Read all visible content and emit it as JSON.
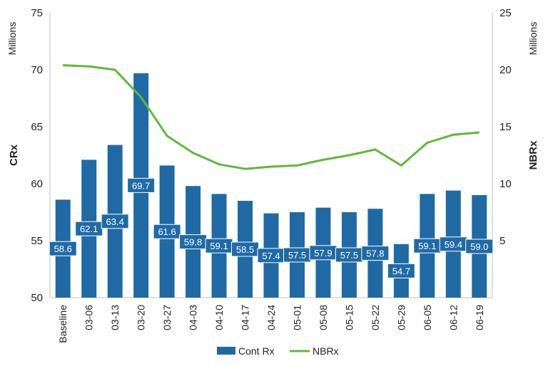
{
  "chart_data": {
    "type": "bar",
    "categories": [
      "Baseline",
      "03-06",
      "03-13",
      "03-20",
      "03-27",
      "04-03",
      "04-10",
      "04-17",
      "04-24",
      "05-01",
      "05-08",
      "05-15",
      "05-22",
      "05-29",
      "06-05",
      "06-12",
      "06-19"
    ],
    "series": [
      {
        "name": "Cont Rx",
        "type": "bar",
        "axis": "left",
        "color": "#1f6aa5",
        "values": [
          58.6,
          62.1,
          63.4,
          69.7,
          61.6,
          59.8,
          59.1,
          58.5,
          57.4,
          57.5,
          57.9,
          57.5,
          57.8,
          54.7,
          59.1,
          59.4,
          59.0
        ],
        "labels": [
          "58.6",
          "62.1",
          "63.4",
          "69.7",
          "61.6",
          "59.8",
          "59.1",
          "58.5",
          "57.4",
          "57.5",
          "57.9",
          "57.5",
          "57.8",
          "54.7",
          "59.1",
          "59.4",
          "59.0"
        ]
      },
      {
        "name": "NBRx",
        "type": "line",
        "axis": "right",
        "color": "#5fb83a",
        "values": [
          20.4,
          20.3,
          20.0,
          17.6,
          14.2,
          12.7,
          11.7,
          11.3,
          11.5,
          11.6,
          12.1,
          12.5,
          13.0,
          11.6,
          13.6,
          14.3,
          14.5
        ]
      }
    ],
    "y_left": {
      "label": "CRx",
      "unit": "Millions",
      "min": 50,
      "max": 75,
      "ticks": [
        "50",
        "55",
        "60",
        "65",
        "70",
        "75"
      ]
    },
    "y_right": {
      "label": "NBRx",
      "unit": "Millions",
      "min": 0,
      "max": 25,
      "ticks": [
        "5",
        "10",
        "15",
        "20",
        "25"
      ]
    },
    "grid": false,
    "legend_position": "bottom"
  }
}
